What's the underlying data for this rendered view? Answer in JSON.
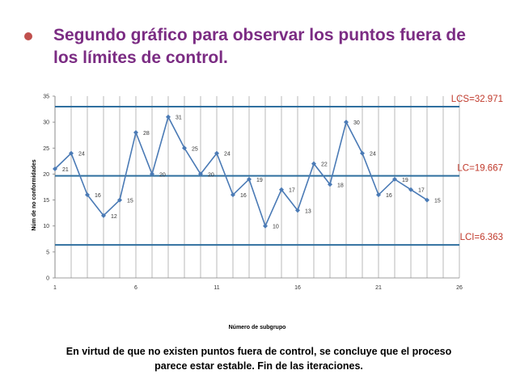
{
  "slide": {
    "title": "Segundo gráfico para observar los puntos fuera de los límites de control.",
    "conclusion": "En virtud de que no existen puntos fuera de control, se concluye que el proceso parece estar estable. Fin de las iteraciones.",
    "bullet_color": "#c0504d",
    "title_color": "#7b2c83"
  },
  "chart_data": {
    "type": "line",
    "title": "",
    "xlabel": "Número de subgrupo",
    "ylabel": "Núm de no conformidades",
    "xlim": [
      1,
      26
    ],
    "ylim": [
      0,
      35
    ],
    "x_ticks": [
      1,
      6,
      11,
      16,
      21,
      26
    ],
    "y_ticks": [
      0,
      5,
      10,
      15,
      20,
      25,
      30,
      35
    ],
    "grid": "vertical",
    "series": [
      {
        "name": "No conformidades",
        "color": "#4a7ab5",
        "x": [
          1,
          2,
          3,
          4,
          5,
          6,
          7,
          8,
          9,
          10,
          11,
          12,
          13,
          14,
          15,
          16,
          17,
          18,
          19,
          20,
          21,
          22,
          23,
          24
        ],
        "values": [
          21,
          24,
          16,
          12,
          15,
          28,
          20,
          31,
          25,
          20,
          24,
          16,
          19,
          10,
          17,
          13,
          22,
          18,
          30,
          24,
          16,
          19,
          17,
          15
        ]
      }
    ],
    "control_lines": [
      {
        "name": "LCS",
        "label": "LCS=32.971",
        "value": 32.971,
        "color": "#2f6f9f"
      },
      {
        "name": "LC",
        "label": "LC=19.667",
        "value": 19.667,
        "color": "#2f6f9f"
      },
      {
        "name": "LCI",
        "label": "LCI=6.363",
        "value": 6.363,
        "color": "#2f6f9f"
      }
    ]
  }
}
